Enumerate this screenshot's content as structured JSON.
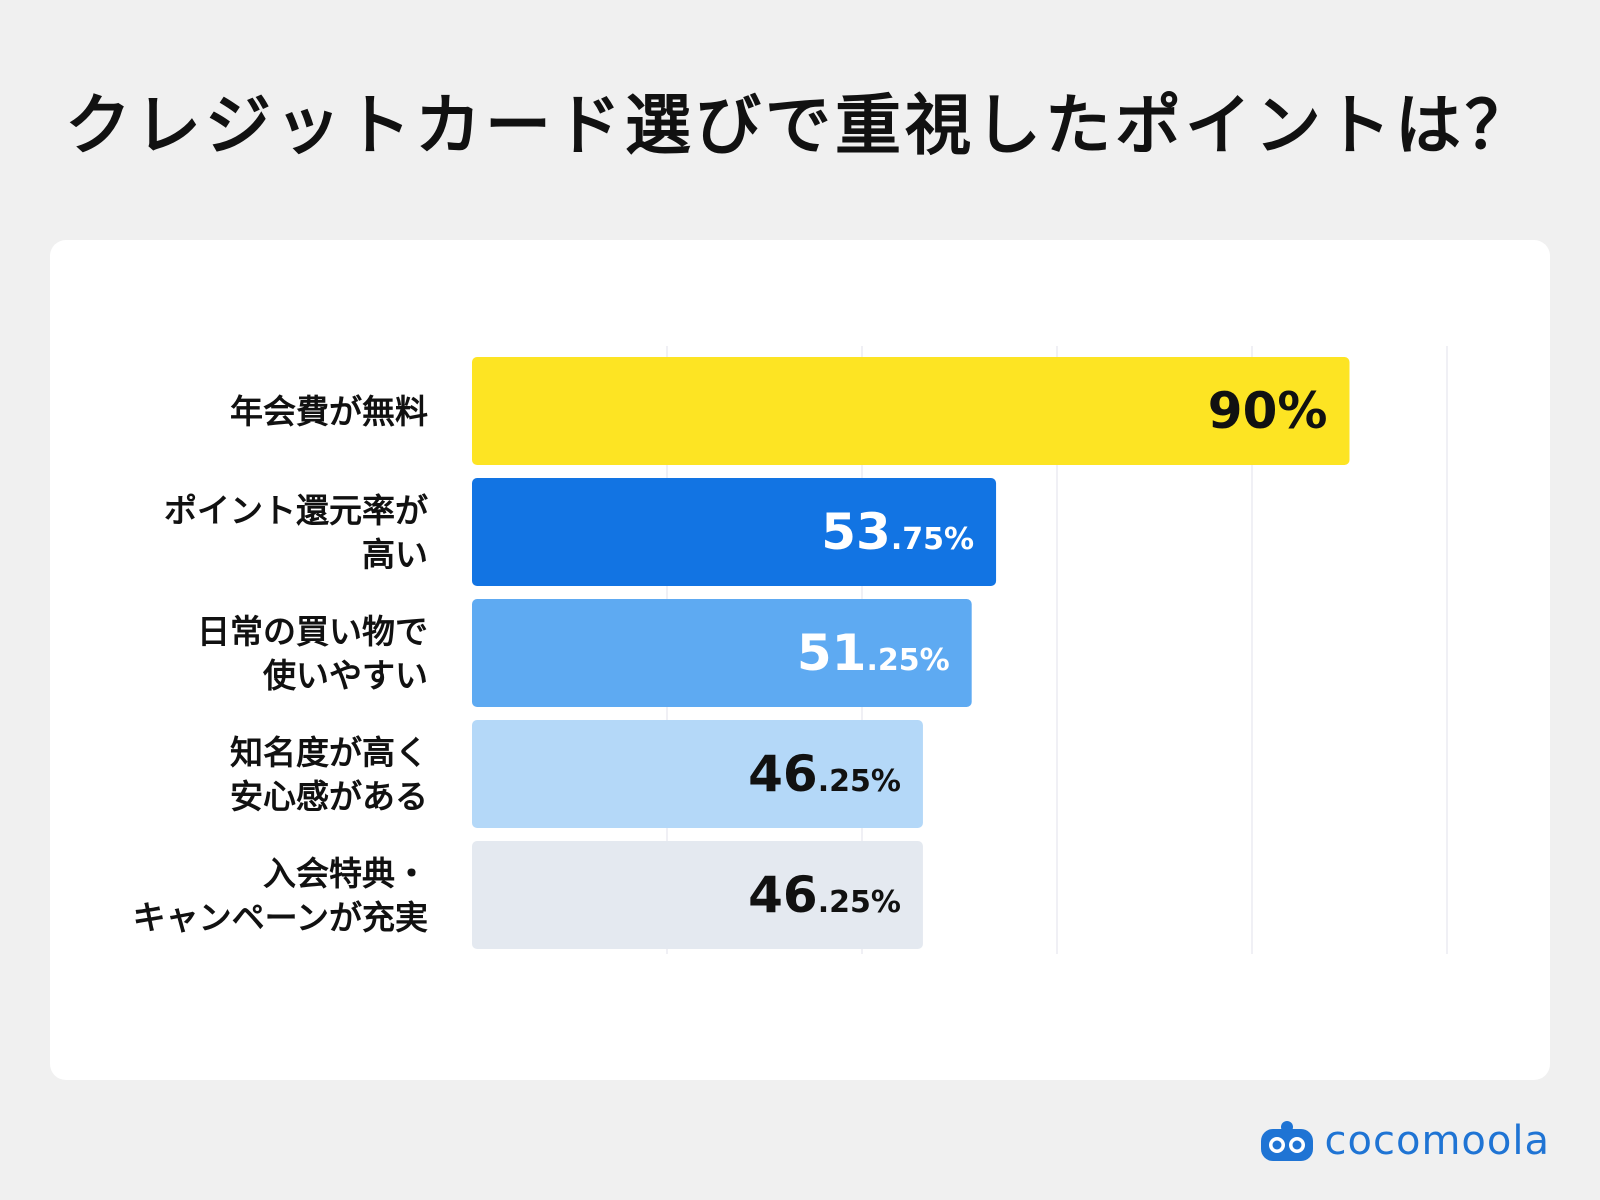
{
  "title": "クレジットカード選びで重視したポイントは？",
  "logo_text": "cocomoola",
  "colors": {
    "background": "#f0f0f0",
    "card": "#ffffff",
    "grid": "#ececf2"
  },
  "chart_data": {
    "type": "bar",
    "orientation": "horizontal",
    "title": "クレジットカード選びで重視したポイントは？",
    "xlim": [
      0,
      100
    ],
    "grid": true,
    "bars": [
      {
        "label_lines": [
          "年会費が無料"
        ],
        "value": 90,
        "int": "90",
        "dec": "",
        "pct": "%",
        "color": "#fde423",
        "text_color": "#111111"
      },
      {
        "label_lines": [
          "ポイント還元率が",
          "高い"
        ],
        "value": 53.75,
        "int": "53",
        "dec": ".75",
        "pct": "%",
        "color": "#1274e3",
        "text_color": "#ffffff"
      },
      {
        "label_lines": [
          "日常の買い物で",
          "使いやすい"
        ],
        "value": 51.25,
        "int": "51",
        "dec": ".25",
        "pct": "%",
        "color": "#5eaaf2",
        "text_color": "#ffffff"
      },
      {
        "label_lines": [
          "知名度が高く",
          "安心感がある"
        ],
        "value": 46.25,
        "int": "46",
        "dec": ".25",
        "pct": "%",
        "color": "#b4d8f8",
        "text_color": "#111111"
      },
      {
        "label_lines": [
          "入会特典・",
          "キャンペーンが充実"
        ],
        "value": 46.25,
        "int": "46",
        "dec": ".25",
        "pct": "%",
        "color": "#e4e9f0",
        "text_color": "#111111"
      }
    ]
  }
}
